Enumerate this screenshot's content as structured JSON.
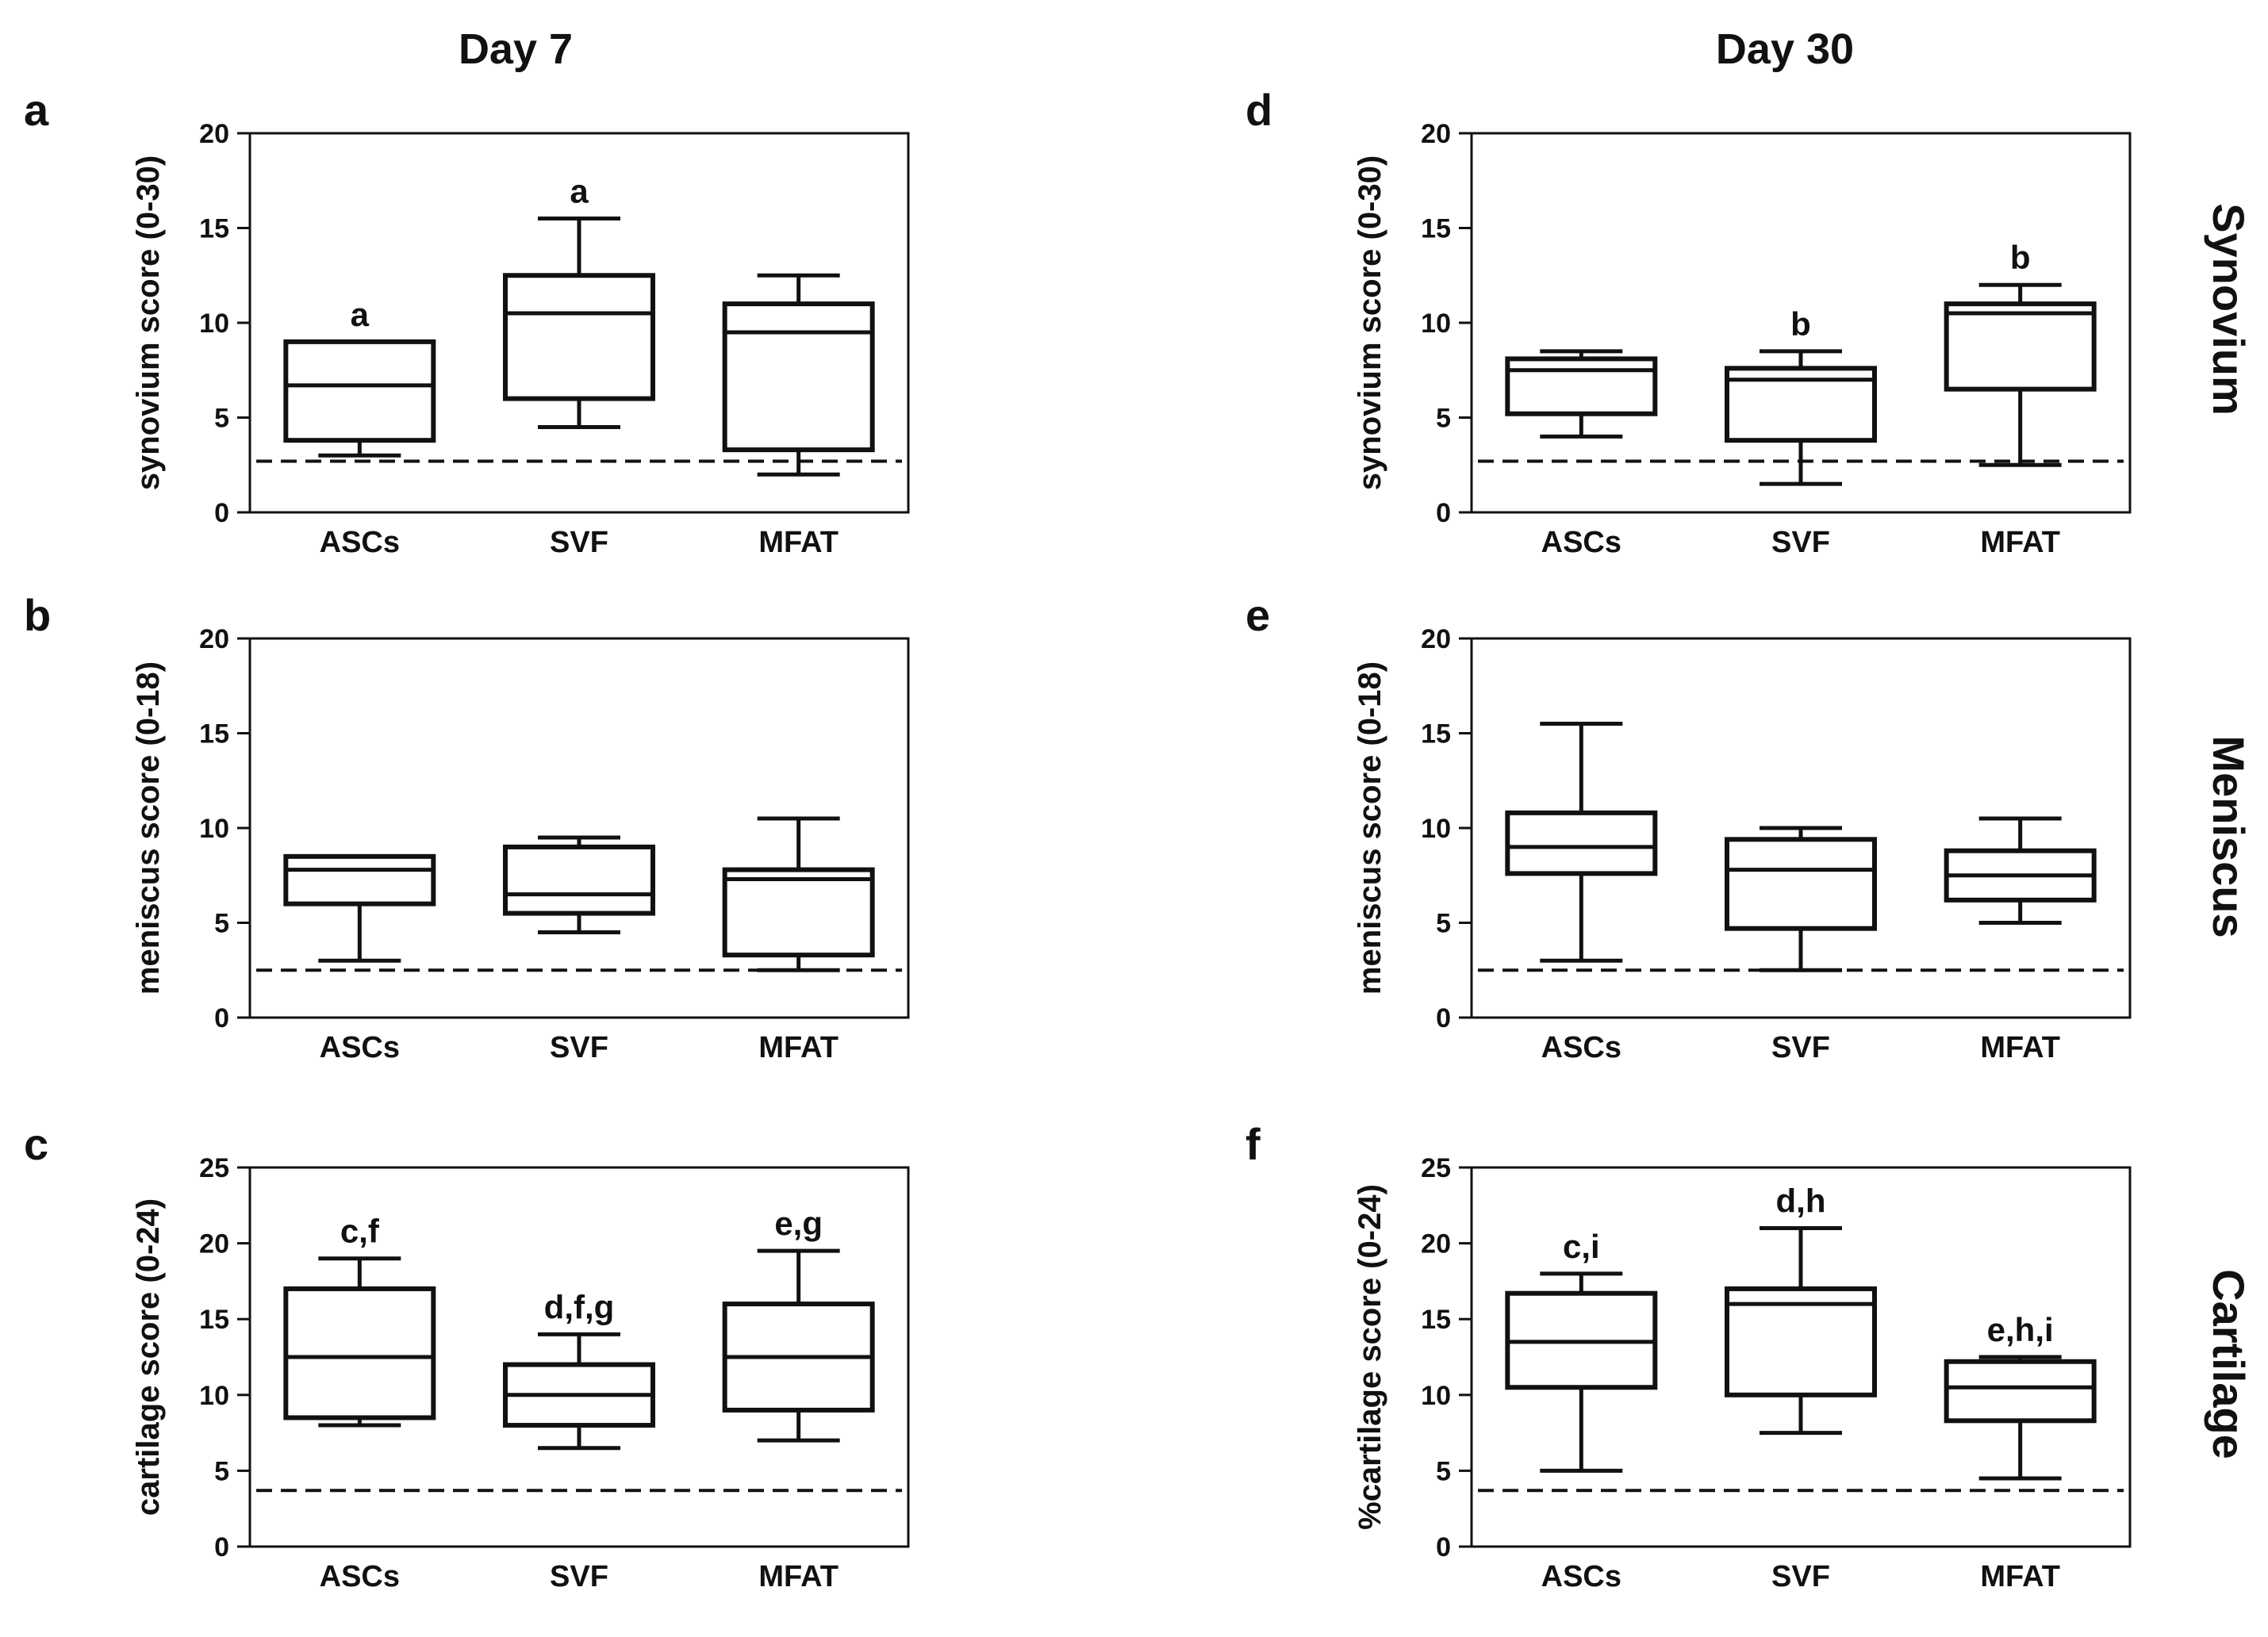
{
  "columns": [
    {
      "title": "Day 7"
    },
    {
      "title": "Day 30"
    }
  ],
  "row_labels": [
    "Synovium",
    "Meniscus",
    "Cartilage"
  ],
  "chart_data": [
    {
      "type": "boxplot",
      "panel": "a",
      "col": 0,
      "row": 0,
      "ylabel": "synovium score (0-30)",
      "ylim": [
        0,
        20
      ],
      "yticks": [
        "0",
        "5",
        "10",
        "15",
        "20"
      ],
      "categories": [
        "ASCs",
        "SVF",
        "MFAT"
      ],
      "boxes": [
        {
          "min": 3.0,
          "q1": 3.8,
          "median": 6.7,
          "q3": 9.0,
          "max": 9.0,
          "label": "a"
        },
        {
          "min": 4.5,
          "q1": 6.0,
          "median": 10.5,
          "q3": 12.5,
          "max": 15.5,
          "label": "a"
        },
        {
          "min": 2.0,
          "q1": 3.3,
          "median": 9.5,
          "q3": 11.0,
          "max": 12.5,
          "label": ""
        }
      ],
      "baseline": 2.7
    },
    {
      "type": "boxplot",
      "panel": "b",
      "col": 0,
      "row": 1,
      "ylabel": "meniscus score (0-18)",
      "ylim": [
        0,
        20
      ],
      "yticks": [
        "0",
        "5",
        "10",
        "15",
        "20"
      ],
      "categories": [
        "ASCs",
        "SVF",
        "MFAT"
      ],
      "boxes": [
        {
          "min": 3.0,
          "q1": 6.0,
          "median": 7.8,
          "q3": 8.5,
          "max": 8.5,
          "label": ""
        },
        {
          "min": 4.5,
          "q1": 5.5,
          "median": 6.5,
          "q3": 9.0,
          "max": 9.5,
          "label": ""
        },
        {
          "min": 2.5,
          "q1": 3.3,
          "median": 7.3,
          "q3": 7.8,
          "max": 10.5,
          "label": ""
        }
      ],
      "baseline": 2.5
    },
    {
      "type": "boxplot",
      "panel": "c",
      "col": 0,
      "row": 2,
      "ylabel": "cartilage score (0-24)",
      "ylim": [
        0,
        25
      ],
      "yticks": [
        "0",
        "5",
        "10",
        "15",
        "20",
        "25"
      ],
      "categories": [
        "ASCs",
        "SVF",
        "MFAT"
      ],
      "boxes": [
        {
          "min": 8.0,
          "q1": 8.5,
          "median": 12.5,
          "q3": 17.0,
          "max": 19.0,
          "label": "c,f"
        },
        {
          "min": 6.5,
          "q1": 8.0,
          "median": 10.0,
          "q3": 12.0,
          "max": 14.0,
          "label": "d,f,g"
        },
        {
          "min": 7.0,
          "q1": 9.0,
          "median": 12.5,
          "q3": 16.0,
          "max": 19.5,
          "label": "e,g"
        }
      ],
      "baseline": 3.7
    },
    {
      "type": "boxplot",
      "panel": "d",
      "col": 1,
      "row": 0,
      "ylabel": "synovium score (0-30)",
      "ylim": [
        0,
        20
      ],
      "yticks": [
        "0",
        "5",
        "10",
        "15",
        "20"
      ],
      "categories": [
        "ASCs",
        "SVF",
        "MFAT"
      ],
      "boxes": [
        {
          "min": 4.0,
          "q1": 5.2,
          "median": 7.5,
          "q3": 8.1,
          "max": 8.5,
          "label": ""
        },
        {
          "min": 1.5,
          "q1": 3.8,
          "median": 7.0,
          "q3": 7.6,
          "max": 8.5,
          "label": "b"
        },
        {
          "min": 2.5,
          "q1": 6.5,
          "median": 10.5,
          "q3": 11.0,
          "max": 12.0,
          "label": "b"
        }
      ],
      "baseline": 2.7
    },
    {
      "type": "boxplot",
      "panel": "e",
      "col": 1,
      "row": 1,
      "ylabel": "meniscus score (0-18)",
      "ylim": [
        0,
        20
      ],
      "yticks": [
        "0",
        "5",
        "10",
        "15",
        "20"
      ],
      "categories": [
        "ASCs",
        "SVF",
        "MFAT"
      ],
      "boxes": [
        {
          "min": 3.0,
          "q1": 7.6,
          "median": 9.0,
          "q3": 10.8,
          "max": 15.5,
          "label": ""
        },
        {
          "min": 2.5,
          "q1": 4.7,
          "median": 7.8,
          "q3": 9.4,
          "max": 10.0,
          "label": ""
        },
        {
          "min": 5.0,
          "q1": 6.2,
          "median": 7.5,
          "q3": 8.8,
          "max": 10.5,
          "label": ""
        }
      ],
      "baseline": 2.5
    },
    {
      "type": "boxplot",
      "panel": "f",
      "col": 1,
      "row": 2,
      "ylabel": "%cartilage score (0-24)",
      "ylim": [
        0,
        25
      ],
      "yticks": [
        "0",
        "5",
        "10",
        "15",
        "20",
        "25"
      ],
      "categories": [
        "ASCs",
        "SVF",
        "MFAT"
      ],
      "boxes": [
        {
          "min": 5.0,
          "q1": 10.5,
          "median": 13.5,
          "q3": 16.7,
          "max": 18.0,
          "label": "c,i"
        },
        {
          "min": 7.5,
          "q1": 10.0,
          "median": 16.0,
          "q3": 17.0,
          "max": 21.0,
          "label": "d,h"
        },
        {
          "min": 4.5,
          "q1": 8.3,
          "median": 10.5,
          "q3": 12.2,
          "max": 12.5,
          "label": "e,h,i"
        }
      ],
      "baseline": 3.7
    }
  ]
}
